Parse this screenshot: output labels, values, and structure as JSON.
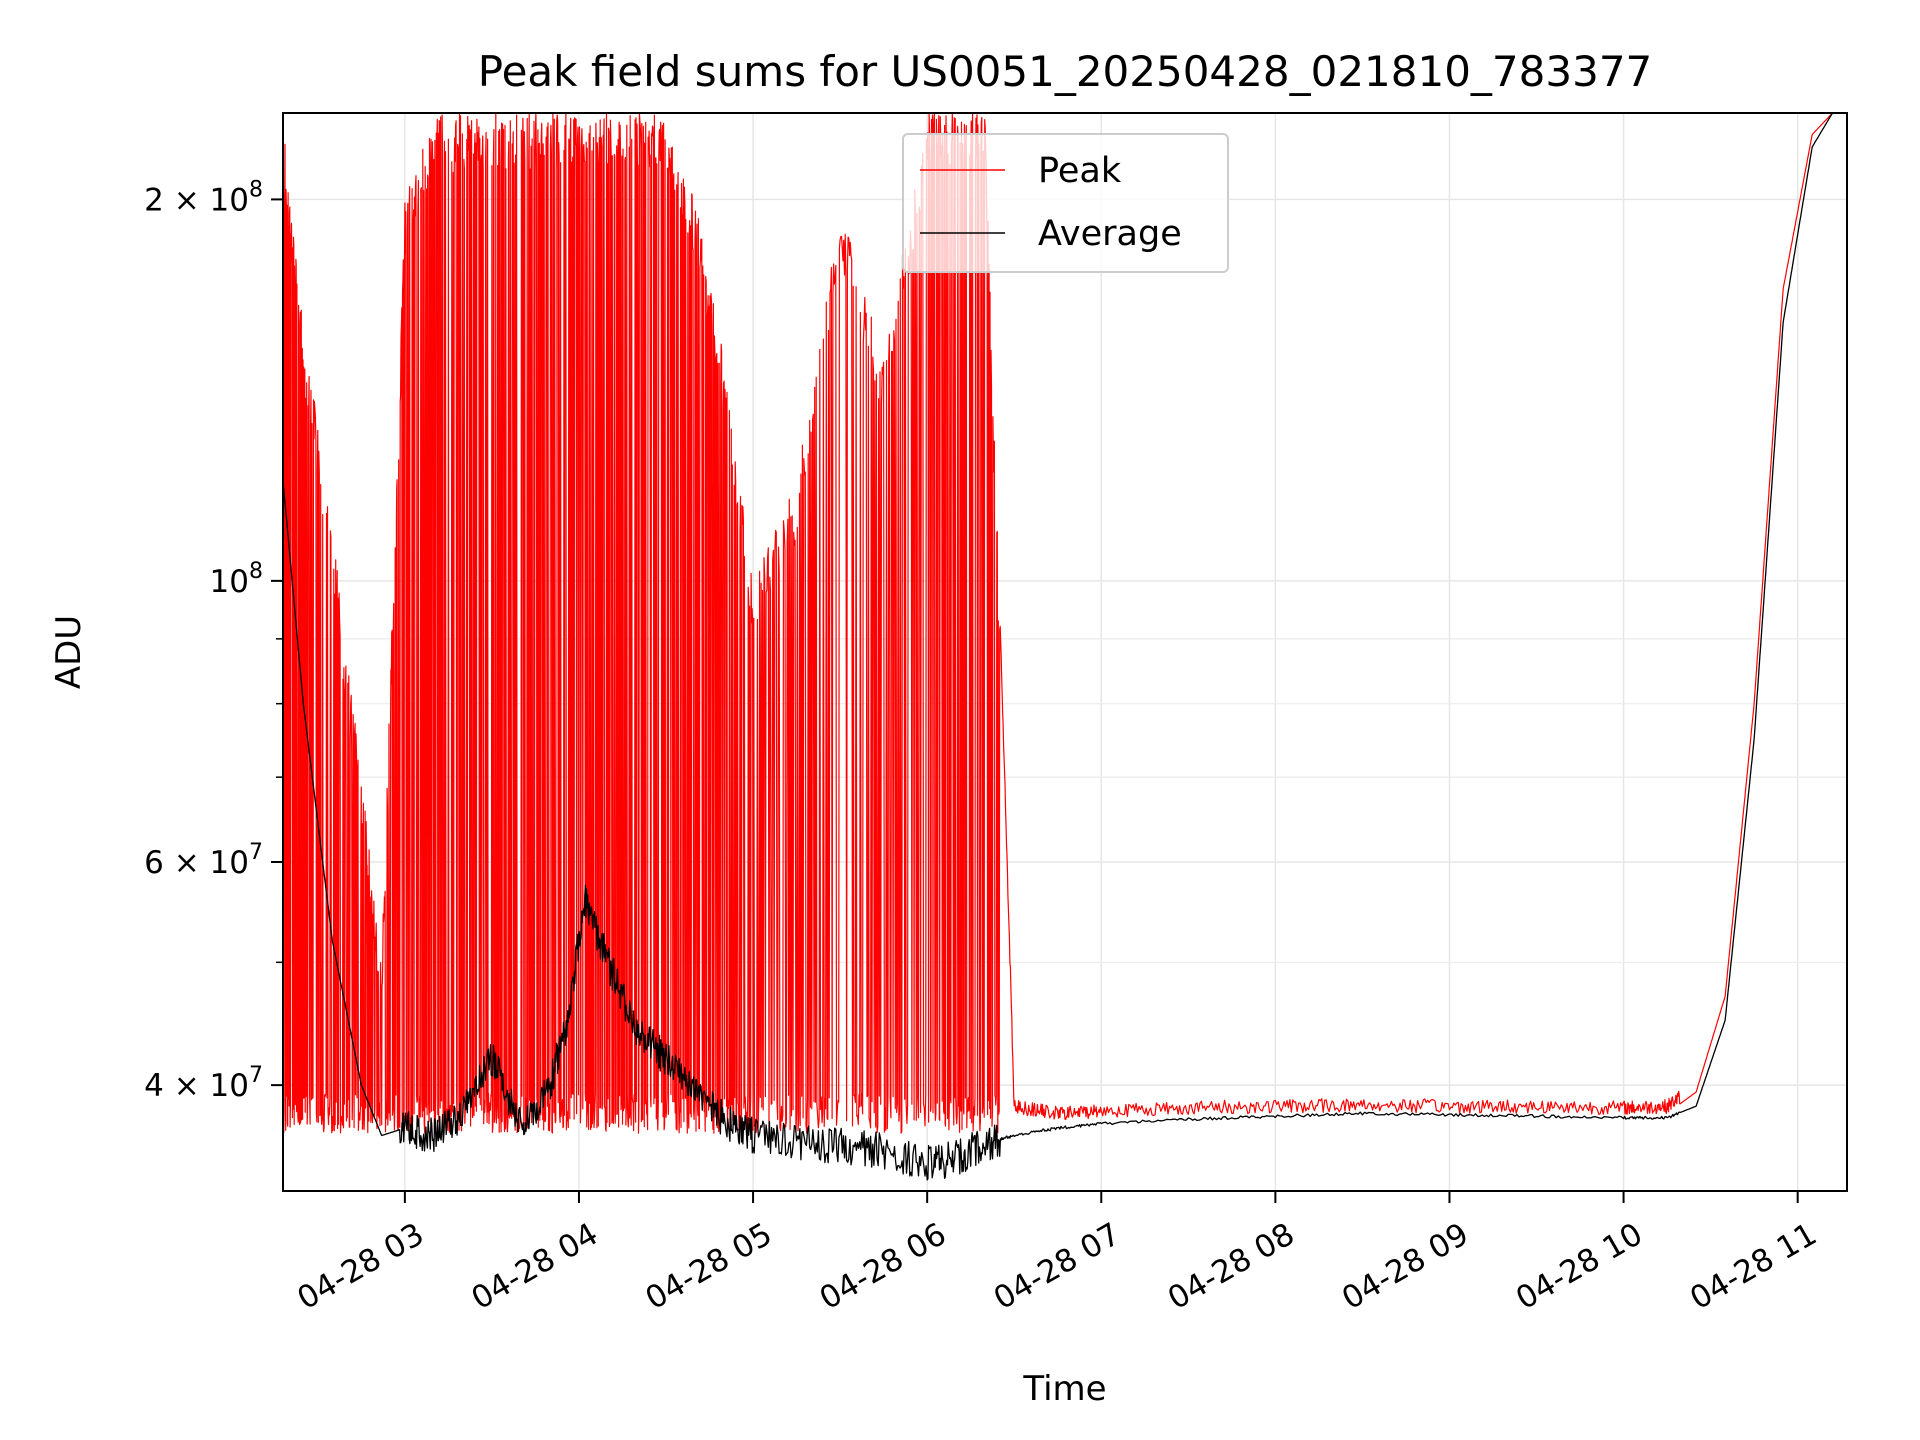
{
  "chart_data": {
    "type": "line",
    "title": "Peak field sums for US0051_20250428_021810_783377",
    "xlabel": "Time",
    "ylabel": "ADU",
    "y_scale": "log",
    "xlim": [
      "2025-04-28T02:18",
      "2025-04-28T11:17"
    ],
    "ylim": [
      33000000,
      234000000
    ],
    "grid": true,
    "legend_position": "top-center",
    "x_ticks": [
      {
        "value": "2025-04-28T03:00",
        "label": "04-28 03"
      },
      {
        "value": "2025-04-28T04:00",
        "label": "04-28 04"
      },
      {
        "value": "2025-04-28T05:00",
        "label": "04-28 05"
      },
      {
        "value": "2025-04-28T06:00",
        "label": "04-28 06"
      },
      {
        "value": "2025-04-28T07:00",
        "label": "04-28 07"
      },
      {
        "value": "2025-04-28T08:00",
        "label": "04-28 08"
      },
      {
        "value": "2025-04-28T09:00",
        "label": "04-28 09"
      },
      {
        "value": "2025-04-28T10:00",
        "label": "04-28 10"
      },
      {
        "value": "2025-04-28T11:00",
        "label": "04-28 11"
      }
    ],
    "y_ticks": [
      {
        "value": 40000000,
        "mant": "4",
        "exp": "7"
      },
      {
        "value": 60000000,
        "mant": "6",
        "exp": "7"
      },
      {
        "value": 100000000,
        "mant": "",
        "exp": "8"
      },
      {
        "value": 200000000,
        "mant": "2",
        "exp": "8"
      }
    ],
    "y_minor_ticks": [
      50000000,
      70000000,
      80000000,
      90000000
    ],
    "series": [
      {
        "name": "Peak",
        "color": "#ff0000",
        "x": [
          "2025-04-28T02:18",
          "2025-04-28T02:25",
          "2025-04-28T02:35",
          "2025-04-28T02:45",
          "2025-04-28T02:52",
          "2025-04-28T03:00",
          "2025-04-28T03:10",
          "2025-04-28T03:20",
          "2025-04-28T03:30",
          "2025-04-28T03:40",
          "2025-04-28T03:50",
          "2025-04-28T04:00",
          "2025-04-28T04:10",
          "2025-04-28T04:20",
          "2025-04-28T04:30",
          "2025-04-28T04:40",
          "2025-04-28T04:50",
          "2025-04-28T05:00",
          "2025-04-28T05:15",
          "2025-04-28T05:30",
          "2025-04-28T05:45",
          "2025-04-28T06:00",
          "2025-04-28T06:10",
          "2025-04-28T06:20",
          "2025-04-28T06:30",
          "2025-04-28T06:45",
          "2025-04-28T07:00",
          "2025-04-28T07:30",
          "2025-04-28T08:00",
          "2025-04-28T08:30",
          "2025-04-28T09:00",
          "2025-04-28T09:30",
          "2025-04-28T10:00",
          "2025-04-28T10:15",
          "2025-04-28T10:25",
          "2025-04-28T10:35",
          "2025-04-28T10:45",
          "2025-04-28T10:55",
          "2025-04-28T11:05",
          "2025-04-28T11:12"
        ],
        "y": [
          230000000,
          160000000,
          110000000,
          70000000,
          50000000,
          200000000,
          234000000,
          234000000,
          234000000,
          234000000,
          234000000,
          234000000,
          234000000,
          234000000,
          234000000,
          200000000,
          150000000,
          100000000,
          120000000,
          200000000,
          150000000,
          234000000,
          234000000,
          234000000,
          38000000,
          37500000,
          37700000,
          37900000,
          38000000,
          38100000,
          38000000,
          38000000,
          37900000,
          38000000,
          39500000,
          47000000,
          80000000,
          170000000,
          225000000,
          234000000
        ]
      },
      {
        "name": "Average",
        "color": "#000000",
        "x": [
          "2025-04-28T02:18",
          "2025-04-28T02:25",
          "2025-04-28T02:35",
          "2025-04-28T02:45",
          "2025-04-28T02:52",
          "2025-04-28T03:00",
          "2025-04-28T03:10",
          "2025-04-28T03:20",
          "2025-04-28T03:30",
          "2025-04-28T03:40",
          "2025-04-28T03:50",
          "2025-04-28T03:56",
          "2025-04-28T04:02",
          "2025-04-28T04:10",
          "2025-04-28T04:20",
          "2025-04-28T04:30",
          "2025-04-28T04:40",
          "2025-04-28T04:50",
          "2025-04-28T05:00",
          "2025-04-28T05:15",
          "2025-04-28T05:30",
          "2025-04-28T05:45",
          "2025-04-28T06:00",
          "2025-04-28T06:10",
          "2025-04-28T06:20",
          "2025-04-28T06:30",
          "2025-04-28T06:45",
          "2025-04-28T07:00",
          "2025-04-28T07:30",
          "2025-04-28T08:00",
          "2025-04-28T08:30",
          "2025-04-28T09:00",
          "2025-04-28T09:30",
          "2025-04-28T10:00",
          "2025-04-28T10:15",
          "2025-04-28T10:25",
          "2025-04-28T10:35",
          "2025-04-28T10:45",
          "2025-04-28T10:55",
          "2025-04-28T11:05",
          "2025-04-28T11:12"
        ],
        "y": [
          120000000,
          80000000,
          52000000,
          40000000,
          36500000,
          37000000,
          36500000,
          38000000,
          42000000,
          37000000,
          40000000,
          45000000,
          56000000,
          50000000,
          44000000,
          42000000,
          40000000,
          37500000,
          36500000,
          36000000,
          35800000,
          35500000,
          34700000,
          35000000,
          36000000,
          36500000,
          37000000,
          37300000,
          37600000,
          37800000,
          38000000,
          37900000,
          37800000,
          37700000,
          37700000,
          38500000,
          45000000,
          75000000,
          160000000,
          220000000,
          234000000
        ]
      }
    ]
  }
}
